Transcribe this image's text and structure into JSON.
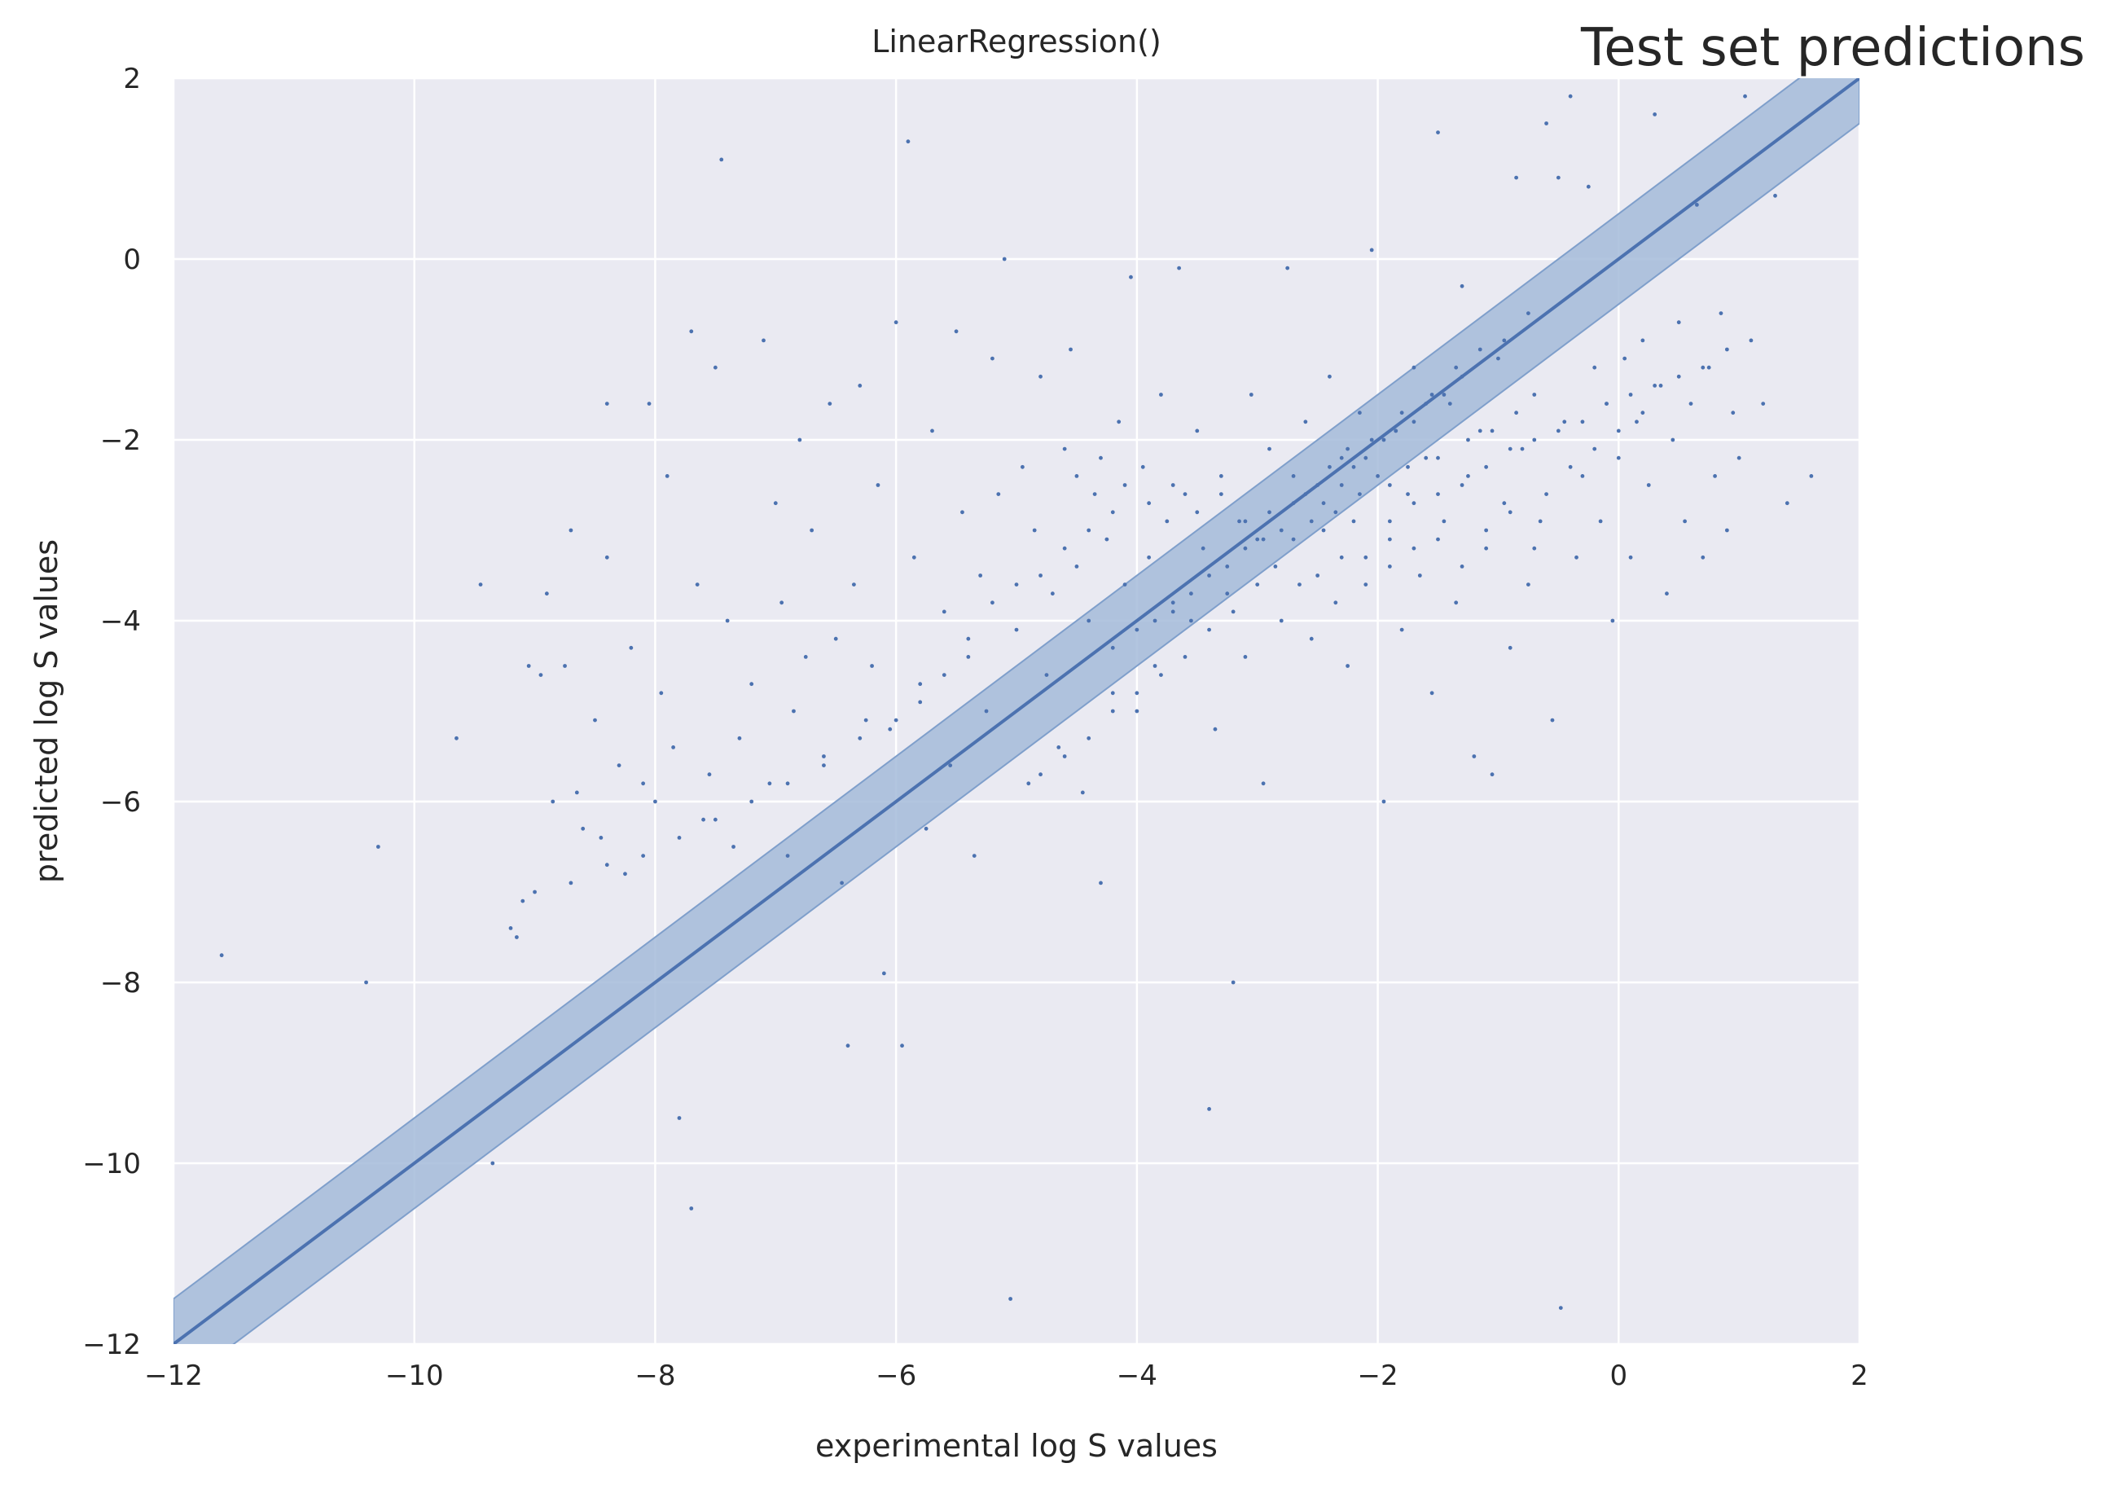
{
  "chart_data": {
    "type": "scatter",
    "title": "LinearRegression()",
    "suptitle": "Test set predictions",
    "xlabel": "experimental log S values",
    "ylabel": "predicted log S values",
    "xlim": [
      -12,
      2
    ],
    "ylim": [
      -12,
      2
    ],
    "xticks": [
      -12,
      -10,
      -8,
      -6,
      -4,
      -2,
      0,
      2
    ],
    "yticks": [
      -12,
      -10,
      -8,
      -6,
      -4,
      -2,
      0,
      2
    ],
    "xtick_labels": [
      "−12",
      "−10",
      "−8",
      "−6",
      "−4",
      "−2",
      "0",
      "2"
    ],
    "ytick_labels": [
      "−12",
      "−10",
      "−8",
      "−6",
      "−4",
      "−2",
      "0",
      "2"
    ],
    "grid": true,
    "identity_line": {
      "slope": 1,
      "intercept": 0,
      "band_halfwidth": 0.5
    },
    "colors": {
      "background": "#eaeaf2",
      "grid": "#ffffff",
      "points": "#4c72b0",
      "band": "#a5bbd9",
      "line": "#4c72b0"
    },
    "points": [
      [
        -11.6,
        -7.7
      ],
      [
        -10.4,
        -8.0
      ],
      [
        -10.3,
        -6.5
      ],
      [
        -9.65,
        -5.3
      ],
      [
        -9.45,
        -3.6
      ],
      [
        -9.35,
        -10.0
      ],
      [
        -9.2,
        -7.4
      ],
      [
        -9.15,
        -7.5
      ],
      [
        -9.1,
        -7.1
      ],
      [
        -9.05,
        -4.5
      ],
      [
        -8.95,
        -4.6
      ],
      [
        -8.9,
        -3.7
      ],
      [
        -8.85,
        -6.0
      ],
      [
        -8.75,
        -4.5
      ],
      [
        -8.7,
        -3.0
      ],
      [
        -8.65,
        -5.9
      ],
      [
        -8.6,
        -6.3
      ],
      [
        -8.5,
        -5.1
      ],
      [
        -8.45,
        -6.4
      ],
      [
        -8.4,
        -3.3
      ],
      [
        -8.4,
        -1.6
      ],
      [
        -8.3,
        -5.6
      ],
      [
        -8.25,
        -6.8
      ],
      [
        -8.2,
        -4.3
      ],
      [
        -8.1,
        -5.8
      ],
      [
        -8.05,
        -1.6
      ],
      [
        -8.0,
        -6.0
      ],
      [
        -7.95,
        -4.8
      ],
      [
        -7.9,
        -2.4
      ],
      [
        -7.85,
        -5.4
      ],
      [
        -7.8,
        -9.5
      ],
      [
        -7.7,
        -0.8
      ],
      [
        -7.7,
        -10.5
      ],
      [
        -7.65,
        -3.6
      ],
      [
        -7.6,
        -6.2
      ],
      [
        -7.55,
        -5.7
      ],
      [
        -7.5,
        -1.2
      ],
      [
        -7.45,
        1.1
      ],
      [
        -7.4,
        -4.0
      ],
      [
        -7.35,
        -6.5
      ],
      [
        -7.3,
        -5.3
      ],
      [
        -7.2,
        -4.7
      ],
      [
        -7.1,
        -0.9
      ],
      [
        -7.05,
        -5.8
      ],
      [
        -7.0,
        -2.7
      ],
      [
        -6.95,
        -3.8
      ],
      [
        -6.9,
        -6.6
      ],
      [
        -6.85,
        -5.0
      ],
      [
        -6.8,
        -2.0
      ],
      [
        -6.75,
        -4.4
      ],
      [
        -6.7,
        -3.0
      ],
      [
        -6.6,
        -5.5
      ],
      [
        -6.55,
        -1.6
      ],
      [
        -6.5,
        -4.2
      ],
      [
        -6.45,
        -6.9
      ],
      [
        -6.4,
        -8.7
      ],
      [
        -6.35,
        -3.6
      ],
      [
        -6.3,
        -1.4
      ],
      [
        -6.25,
        -5.1
      ],
      [
        -6.2,
        -4.5
      ],
      [
        -6.15,
        -2.5
      ],
      [
        -6.1,
        -7.9
      ],
      [
        -6.05,
        -5.2
      ],
      [
        -6.0,
        -0.7
      ],
      [
        -5.95,
        -8.7
      ],
      [
        -5.9,
        1.3
      ],
      [
        -5.85,
        -3.3
      ],
      [
        -5.8,
        -4.7
      ],
      [
        -5.75,
        -6.3
      ],
      [
        -5.7,
        -1.9
      ],
      [
        -5.6,
        -3.9
      ],
      [
        -5.55,
        -5.6
      ],
      [
        -5.5,
        -0.8
      ],
      [
        -5.45,
        -2.8
      ],
      [
        -5.4,
        -4.4
      ],
      [
        -5.35,
        -6.6
      ],
      [
        -5.3,
        -3.5
      ],
      [
        -5.25,
        -5.0
      ],
      [
        -5.2,
        -1.1
      ],
      [
        -5.15,
        -2.6
      ],
      [
        -5.1,
        0.0
      ],
      [
        -5.05,
        -11.5
      ],
      [
        -5.0,
        -4.1
      ],
      [
        -4.95,
        -2.3
      ],
      [
        -4.9,
        -5.8
      ],
      [
        -4.85,
        -3.0
      ],
      [
        -4.8,
        -1.3
      ],
      [
        -4.75,
        -4.6
      ],
      [
        -4.7,
        -3.7
      ],
      [
        -4.65,
        -5.4
      ],
      [
        -4.6,
        -2.1
      ],
      [
        -4.55,
        -1.0
      ],
      [
        -4.5,
        -3.4
      ],
      [
        -4.45,
        -5.9
      ],
      [
        -4.4,
        -4.0
      ],
      [
        -4.35,
        -2.6
      ],
      [
        -4.3,
        -6.9
      ],
      [
        -4.25,
        -3.1
      ],
      [
        -4.2,
        -4.8
      ],
      [
        -4.15,
        -1.8
      ],
      [
        -4.1,
        -3.6
      ],
      [
        -4.05,
        -0.2
      ],
      [
        -4.0,
        -5.0
      ],
      [
        -3.95,
        -2.3
      ],
      [
        -3.9,
        -3.3
      ],
      [
        -3.85,
        -4.5
      ],
      [
        -3.8,
        -1.5
      ],
      [
        -3.75,
        -2.9
      ],
      [
        -3.7,
        -3.8
      ],
      [
        -3.65,
        -0.1
      ],
      [
        -3.6,
        -2.6
      ],
      [
        -3.55,
        -4.0
      ],
      [
        -3.5,
        -1.9
      ],
      [
        -3.45,
        -3.2
      ],
      [
        -3.4,
        -9.4
      ],
      [
        -3.35,
        -5.2
      ],
      [
        -3.3,
        -2.4
      ],
      [
        -3.25,
        -3.7
      ],
      [
        -3.2,
        -8.0
      ],
      [
        -3.15,
        -2.9
      ],
      [
        -3.1,
        -4.4
      ],
      [
        -3.05,
        -1.5
      ],
      [
        -3.0,
        -3.1
      ],
      [
        -2.95,
        -5.8
      ],
      [
        -2.9,
        -2.1
      ],
      [
        -2.85,
        -3.4
      ],
      [
        -2.8,
        -4.0
      ],
      [
        -2.75,
        -0.1
      ],
      [
        -2.7,
        -2.7
      ],
      [
        -2.65,
        -3.6
      ],
      [
        -2.6,
        -1.8
      ],
      [
        -2.55,
        -4.2
      ],
      [
        -2.5,
        -2.5
      ],
      [
        -2.45,
        -3.0
      ],
      [
        -2.4,
        -1.3
      ],
      [
        -2.35,
        -3.8
      ],
      [
        -2.3,
        -2.2
      ],
      [
        -2.25,
        -4.5
      ],
      [
        -2.2,
        -2.9
      ],
      [
        -2.15,
        -1.7
      ],
      [
        -2.1,
        -3.3
      ],
      [
        -2.05,
        0.1
      ],
      [
        -2.0,
        -2.4
      ],
      [
        -1.95,
        -6.0
      ],
      [
        -1.9,
        -3.1
      ],
      [
        -1.85,
        -1.9
      ],
      [
        -1.8,
        -4.1
      ],
      [
        -1.75,
        -2.6
      ],
      [
        -1.7,
        -1.2
      ],
      [
        -1.65,
        -3.5
      ],
      [
        -1.6,
        -2.2
      ],
      [
        -1.55,
        -4.8
      ],
      [
        -1.5,
        1.4
      ],
      [
        -1.45,
        -2.9
      ],
      [
        -1.4,
        -1.6
      ],
      [
        -1.35,
        -3.8
      ],
      [
        -1.3,
        -0.3
      ],
      [
        -1.25,
        -2.4
      ],
      [
        -1.2,
        -5.5
      ],
      [
        -1.15,
        -1.9
      ],
      [
        -1.1,
        -3.2
      ],
      [
        -1.05,
        -5.7
      ],
      [
        -1.0,
        -1.1
      ],
      [
        -0.95,
        -2.7
      ],
      [
        -0.9,
        -4.3
      ],
      [
        -0.85,
        0.9
      ],
      [
        -0.8,
        -2.1
      ],
      [
        -0.75,
        -3.6
      ],
      [
        -0.7,
        -1.5
      ],
      [
        -0.65,
        -2.9
      ],
      [
        -0.6,
        1.5
      ],
      [
        -0.55,
        -5.1
      ],
      [
        -0.5,
        0.9
      ],
      [
        -0.48,
        -11.6
      ],
      [
        -0.45,
        -1.8
      ],
      [
        -0.4,
        1.8
      ],
      [
        -0.35,
        -3.3
      ],
      [
        -0.3,
        -2.4
      ],
      [
        -0.25,
        0.8
      ],
      [
        -0.2,
        -1.2
      ],
      [
        -0.15,
        -2.9
      ],
      [
        -0.1,
        -1.6
      ],
      [
        -0.05,
        -4.0
      ],
      [
        0.0,
        -2.2
      ],
      [
        0.05,
        -1.1
      ],
      [
        0.1,
        -3.3
      ],
      [
        0.15,
        -1.8
      ],
      [
        0.2,
        -0.9
      ],
      [
        0.25,
        -2.5
      ],
      [
        0.3,
        1.6
      ],
      [
        0.35,
        -1.4
      ],
      [
        0.4,
        -3.7
      ],
      [
        0.45,
        -2.0
      ],
      [
        0.5,
        -0.7
      ],
      [
        0.55,
        -2.9
      ],
      [
        0.6,
        -1.6
      ],
      [
        0.65,
        0.6
      ],
      [
        0.7,
        -3.3
      ],
      [
        0.75,
        -1.2
      ],
      [
        0.8,
        -2.4
      ],
      [
        0.85,
        -0.6
      ],
      [
        0.9,
        -3.0
      ],
      [
        0.95,
        -1.7
      ],
      [
        1.0,
        -2.2
      ],
      [
        1.05,
        1.8
      ],
      [
        1.1,
        -0.9
      ],
      [
        1.2,
        -1.6
      ],
      [
        1.3,
        0.7
      ],
      [
        1.4,
        -2.7
      ],
      [
        1.6,
        -2.4
      ],
      [
        -2.45,
        -2.7
      ],
      [
        -2.3,
        -2.5
      ],
      [
        -2.2,
        -2.3
      ],
      [
        -2.1,
        -2.2
      ],
      [
        -1.95,
        -2.0
      ],
      [
        -1.85,
        -1.9
      ],
      [
        -1.7,
        -1.8
      ],
      [
        -1.6,
        -1.6
      ],
      [
        -1.45,
        -1.5
      ],
      [
        -1.3,
        -1.3
      ],
      [
        -2.8,
        -3.0
      ],
      [
        -2.95,
        -3.1
      ],
      [
        -3.1,
        -3.2
      ],
      [
        -3.25,
        -3.4
      ],
      [
        -3.4,
        -3.5
      ],
      [
        -3.55,
        -3.7
      ],
      [
        -3.7,
        -3.9
      ],
      [
        -3.85,
        -4.0
      ],
      [
        -4.0,
        -4.1
      ],
      [
        -4.2,
        -4.3
      ],
      [
        -2.6,
        -2.6
      ],
      [
        -2.4,
        -2.3
      ],
      [
        -2.25,
        -2.1
      ],
      [
        -2.05,
        -2.0
      ],
      [
        -1.8,
        -1.7
      ],
      [
        -1.55,
        -1.5
      ],
      [
        -1.35,
        -1.2
      ],
      [
        -1.15,
        -1.0
      ],
      [
        -0.95,
        -0.9
      ],
      [
        -0.75,
        -0.6
      ],
      [
        -2.7,
        -3.1
      ],
      [
        -2.55,
        -2.9
      ],
      [
        -2.35,
        -2.8
      ],
      [
        -2.15,
        -2.6
      ],
      [
        -1.9,
        -2.5
      ],
      [
        -1.75,
        -2.3
      ],
      [
        -1.5,
        -2.2
      ],
      [
        -1.25,
        -2.0
      ],
      [
        -1.05,
        -1.9
      ],
      [
        -0.85,
        -1.7
      ],
      [
        -1.9,
        -2.9
      ],
      [
        -1.7,
        -2.7
      ],
      [
        -1.5,
        -2.6
      ],
      [
        -1.3,
        -2.5
      ],
      [
        -1.1,
        -2.3
      ],
      [
        -0.9,
        -2.1
      ],
      [
        -0.7,
        -2.0
      ],
      [
        -0.5,
        -1.9
      ],
      [
        -0.3,
        -1.8
      ],
      [
        -0.1,
        -1.6
      ],
      [
        0.1,
        -1.5
      ],
      [
        0.3,
        -1.4
      ],
      [
        0.5,
        -1.3
      ],
      [
        0.7,
        -1.2
      ],
      [
        0.9,
        -1.0
      ],
      [
        -0.6,
        -2.6
      ],
      [
        -0.4,
        -2.3
      ],
      [
        -0.2,
        -2.1
      ],
      [
        0.0,
        -1.9
      ],
      [
        0.2,
        -1.7
      ],
      [
        -5.2,
        -3.8
      ],
      [
        -5.0,
        -3.6
      ],
      [
        -4.8,
        -3.5
      ],
      [
        -4.6,
        -3.2
      ],
      [
        -4.4,
        -3.0
      ],
      [
        -4.2,
        -2.8
      ],
      [
        -5.4,
        -4.2
      ],
      [
        -5.6,
        -4.6
      ],
      [
        -5.8,
        -4.9
      ],
      [
        -6.0,
        -5.1
      ],
      [
        -6.3,
        -5.3
      ],
      [
        -6.6,
        -5.6
      ],
      [
        -6.9,
        -5.8
      ],
      [
        -7.2,
        -6.0
      ],
      [
        -7.5,
        -6.2
      ],
      [
        -7.8,
        -6.4
      ],
      [
        -8.1,
        -6.6
      ],
      [
        -8.4,
        -6.7
      ],
      [
        -8.7,
        -6.9
      ],
      [
        -9.0,
        -7.0
      ],
      [
        -4.5,
        -2.4
      ],
      [
        -4.3,
        -2.2
      ],
      [
        -4.1,
        -2.5
      ],
      [
        -3.9,
        -2.7
      ],
      [
        -3.7,
        -2.5
      ],
      [
        -3.5,
        -2.8
      ],
      [
        -3.3,
        -2.6
      ],
      [
        -3.1,
        -2.9
      ],
      [
        -2.9,
        -2.8
      ],
      [
        -2.7,
        -2.4
      ],
      [
        -3.0,
        -3.6
      ],
      [
        -3.2,
        -3.9
      ],
      [
        -3.4,
        -4.1
      ],
      [
        -3.6,
        -4.4
      ],
      [
        -3.8,
        -4.6
      ],
      [
        -4.0,
        -4.8
      ],
      [
        -4.2,
        -5.0
      ],
      [
        -4.4,
        -5.3
      ],
      [
        -4.6,
        -5.5
      ],
      [
        -4.8,
        -5.7
      ],
      [
        -2.5,
        -3.5
      ],
      [
        -2.3,
        -3.3
      ],
      [
        -2.1,
        -3.6
      ],
      [
        -1.9,
        -3.4
      ],
      [
        -1.7,
        -3.2
      ],
      [
        -1.5,
        -3.1
      ],
      [
        -1.3,
        -3.4
      ],
      [
        -1.1,
        -3.0
      ],
      [
        -0.9,
        -2.8
      ],
      [
        -0.7,
        -3.2
      ]
    ]
  }
}
